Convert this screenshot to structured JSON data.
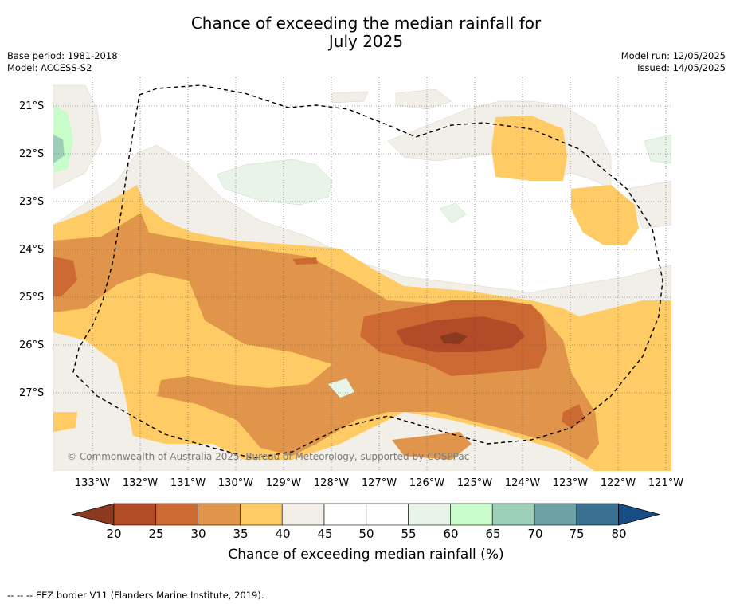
{
  "title_line1": "Chance of exceeding the median rainfall for",
  "title_line2": "July 2025",
  "meta_left": {
    "base_period": "Base period: 1981-2018",
    "model": "Model: ACCESS-S2"
  },
  "meta_right": {
    "model_run": "Model run: 12/05/2025",
    "issued": "Issued: 14/05/2025"
  },
  "latitude_labels": [
    "21°S",
    "22°S",
    "23°S",
    "24°S",
    "25°S",
    "26°S",
    "27°S"
  ],
  "longitude_labels": [
    "133°W",
    "132°W",
    "131°W",
    "130°W",
    "129°W",
    "128°W",
    "127°W",
    "126°W",
    "125°W",
    "124°W",
    "123°W",
    "122°W",
    "121°W"
  ],
  "copyright": "© Commonwealth of Australia 2025, Bureau of Meteorology, supported by COSPPac",
  "colorbar": {
    "ticks": [
      "20",
      "25",
      "30",
      "35",
      "40",
      "45",
      "50",
      "55",
      "60",
      "65",
      "70",
      "75",
      "80"
    ],
    "colors": [
      "#8b3a1f",
      "#b24b28",
      "#cd6a33",
      "#e0954a",
      "#fecb65",
      "#f2eee8",
      "#ffffff",
      "#ffffff",
      "#e9f4e8",
      "#c8fcc8",
      "#9ccfb8",
      "#6ea1a6",
      "#3a7192",
      "#184e86"
    ],
    "label": "Chance of exceeding median rainfall (%)"
  },
  "footer": "--  --  -- EEZ border V11 (Flanders Marine Institute, 2019)."
}
